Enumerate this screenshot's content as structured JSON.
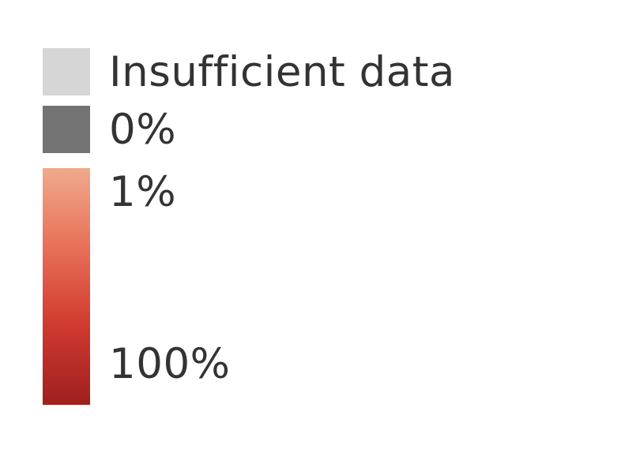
{
  "legend": {
    "items": [
      {
        "label": "Insufficient data",
        "color": "#d6d6d6"
      },
      {
        "label": "0%",
        "color": "#737373"
      }
    ],
    "gradient": {
      "stops": [
        {
          "label": "1%",
          "value": 1,
          "color": "#f0aa8c"
        },
        {
          "label": "100%",
          "value": 100,
          "color": "#9e1f1f"
        }
      ],
      "colors": [
        "#f0aa8c",
        "#e8705a",
        "#d03a30",
        "#9e1f1f"
      ]
    }
  }
}
